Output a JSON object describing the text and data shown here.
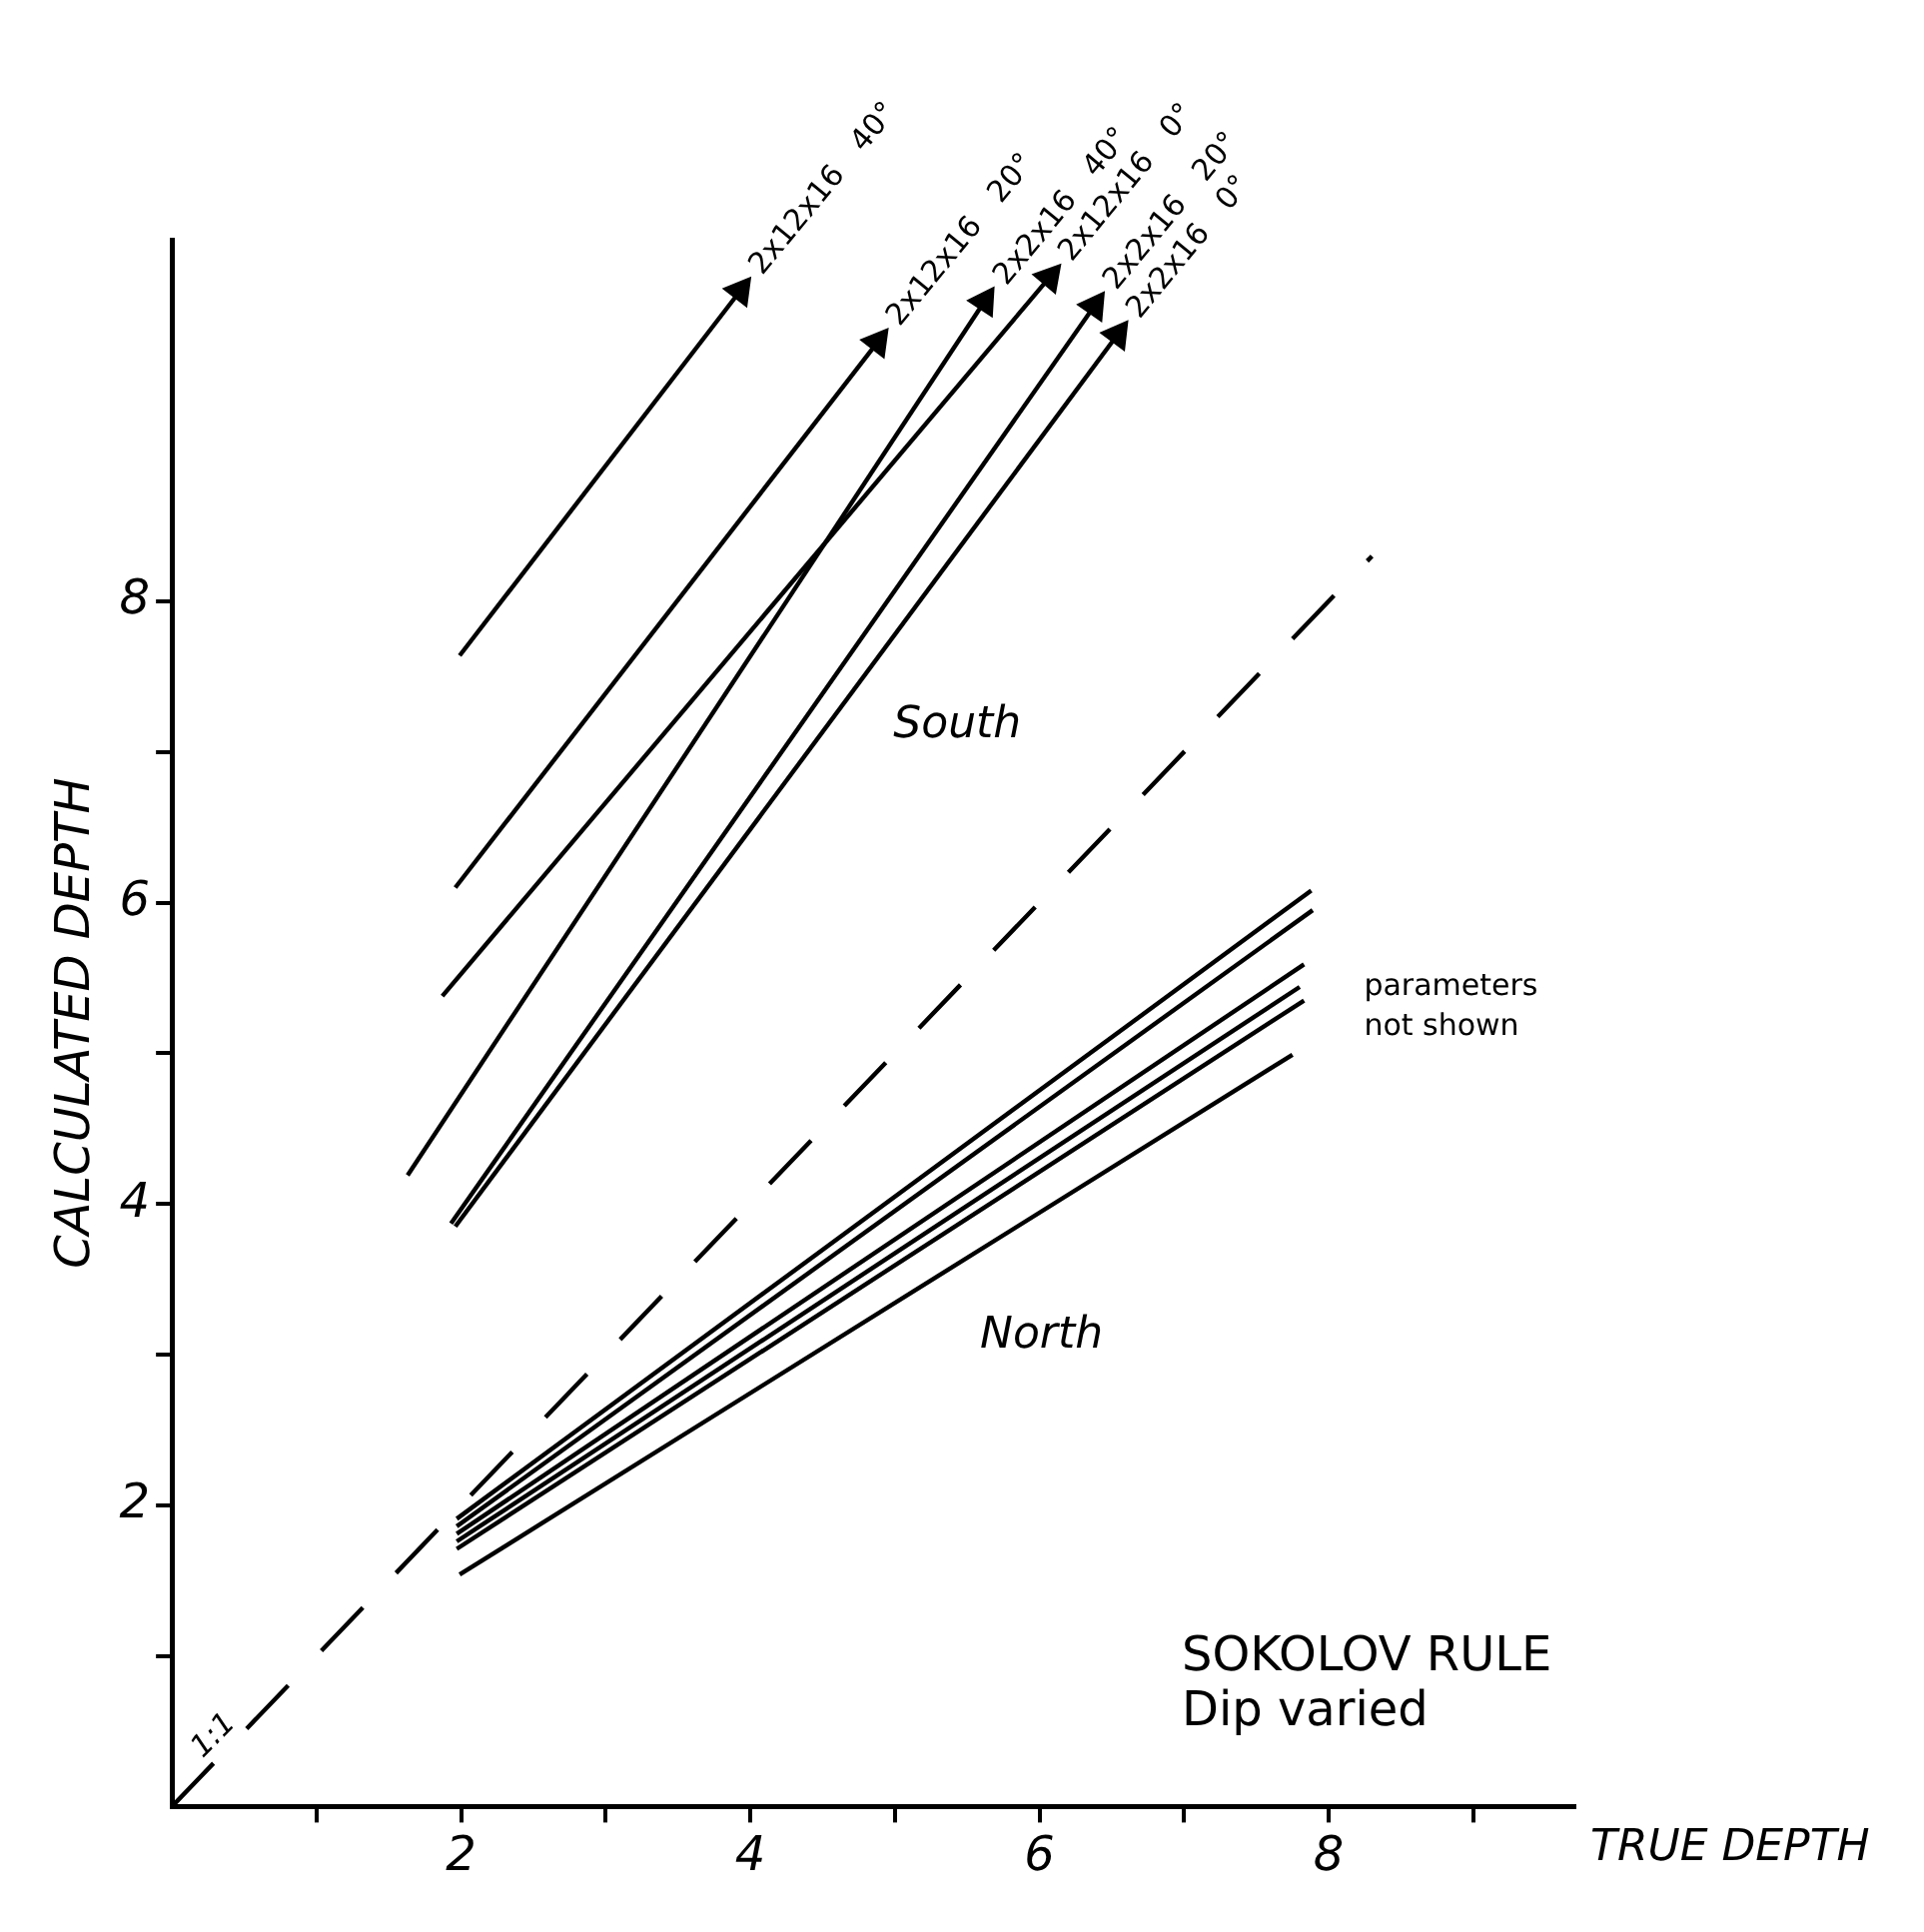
{
  "chart_data": {
    "type": "line",
    "xlabel": "TRUE DEPTH",
    "ylabel": "CALCULATED DEPTH",
    "xlim": [
      0,
      9.7
    ],
    "ylim": [
      0,
      10.4
    ],
    "xticks": [
      {
        "value": 1,
        "label": null
      },
      2,
      {
        "value": 3,
        "label": null
      },
      4,
      {
        "value": 5,
        "label": null
      },
      6,
      {
        "value": 7,
        "label": null
      },
      8,
      {
        "value": 9,
        "label": null
      }
    ],
    "yticks": [
      {
        "value": 1,
        "label": null
      },
      2,
      {
        "value": 3,
        "label": null
      },
      4,
      {
        "value": 5,
        "label": null
      },
      6,
      {
        "value": 7,
        "label": null
      },
      8
    ],
    "grid": false,
    "legend": false,
    "marker": "none",
    "series": [
      {
        "name": "2x12x16   40°",
        "color": "#000000",
        "marker": "triangle",
        "x": [
          1.99,
          3.93
        ],
        "values": [
          7.64,
          10.06
        ]
      },
      {
        "name": "2x12x16   20°",
        "color": "#000000",
        "marker": "triangle",
        "x": [
          1.96,
          4.88
        ],
        "values": [
          6.1,
          9.72
        ]
      },
      {
        "name": "2x12x16   0°",
        "color": "#000000",
        "marker": "triangle",
        "x": [
          1.87,
          6.07
        ],
        "values": [
          5.38,
          10.15
        ]
      },
      {
        "name": "2x2x16   40°",
        "color": "#000000",
        "marker": "triangle",
        "x": [
          1.63,
          5.62
        ],
        "values": [
          4.19,
          9.99
        ]
      },
      {
        "name": "2x2x16   20°",
        "color": "#000000",
        "marker": "triangle",
        "x": [
          1.93,
          6.38
        ],
        "values": [
          3.87,
          9.96
        ]
      },
      {
        "name": "2x2x16   0°",
        "color": "#000000",
        "marker": "triangle",
        "x": [
          1.96,
          6.54
        ],
        "values": [
          3.85,
          9.77
        ]
      },
      {
        "color": "#000000",
        "x": [
          1.97,
          7.88
        ],
        "values": [
          1.91,
          6.08
        ]
      },
      {
        "color": "#000000",
        "x": [
          1.97,
          7.89
        ],
        "values": [
          1.86,
          5.95
        ]
      },
      {
        "color": "#000000",
        "x": [
          1.97,
          7.83
        ],
        "values": [
          1.81,
          5.59
        ]
      },
      {
        "color": "#000000",
        "x": [
          1.97,
          7.8
        ],
        "values": [
          1.76,
          5.44
        ]
      },
      {
        "color": "#000000",
        "x": [
          1.97,
          7.83
        ],
        "values": [
          1.71,
          5.35
        ]
      },
      {
        "color": "#000000",
        "x": [
          1.99,
          7.75
        ],
        "values": [
          1.54,
          4.99
        ]
      },
      {
        "color": "#000000",
        "x": [
          0,
          8.3
        ],
        "values": [
          0,
          8.3
        ],
        "line_style": "dashed"
      }
    ],
    "annotations": [
      "1:1",
      "South",
      "North",
      "parameters not shown",
      "SOKOLOV RULE",
      "Dip varied"
    ]
  }
}
